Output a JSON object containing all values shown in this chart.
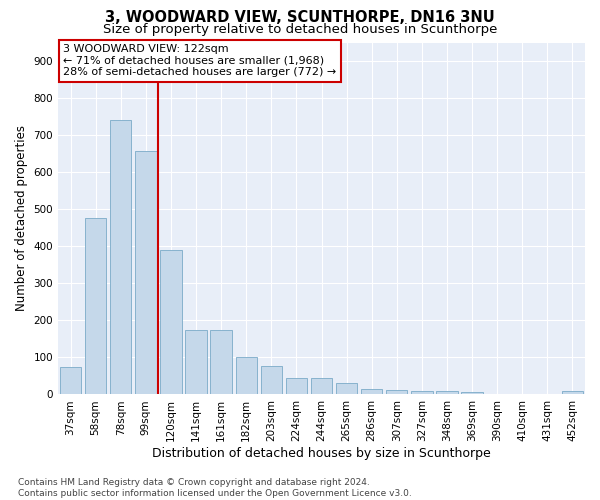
{
  "title": "3, WOODWARD VIEW, SCUNTHORPE, DN16 3NU",
  "subtitle": "Size of property relative to detached houses in Scunthorpe",
  "xlabel": "Distribution of detached houses by size in Scunthorpe",
  "ylabel": "Number of detached properties",
  "categories": [
    "37sqm",
    "58sqm",
    "78sqm",
    "99sqm",
    "120sqm",
    "141sqm",
    "161sqm",
    "182sqm",
    "203sqm",
    "224sqm",
    "244sqm",
    "265sqm",
    "286sqm",
    "307sqm",
    "327sqm",
    "348sqm",
    "369sqm",
    "390sqm",
    "410sqm",
    "431sqm",
    "452sqm"
  ],
  "values": [
    75,
    475,
    740,
    657,
    390,
    175,
    175,
    100,
    77,
    45,
    45,
    32,
    15,
    12,
    10,
    8,
    7,
    0,
    0,
    0,
    10
  ],
  "bar_color": "#c5d8ea",
  "bar_edgecolor": "#7aaac8",
  "vline_x": 3.5,
  "vline_color": "#cc0000",
  "annotation_text": "3 WOODWARD VIEW: 122sqm\n← 71% of detached houses are smaller (1,968)\n28% of semi-detached houses are larger (772) →",
  "annotation_box_facecolor": "#ffffff",
  "annotation_box_edgecolor": "#cc0000",
  "ylim": [
    0,
    950
  ],
  "yticks": [
    0,
    100,
    200,
    300,
    400,
    500,
    600,
    700,
    800,
    900
  ],
  "background_color": "#e8eef8",
  "grid_color": "#ffffff",
  "footer_line1": "Contains HM Land Registry data © Crown copyright and database right 2024.",
  "footer_line2": "Contains public sector information licensed under the Open Government Licence v3.0.",
  "title_fontsize": 10.5,
  "subtitle_fontsize": 9.5,
  "xlabel_fontsize": 9,
  "ylabel_fontsize": 8.5,
  "tick_fontsize": 7.5,
  "annotation_fontsize": 8,
  "footer_fontsize": 6.5
}
